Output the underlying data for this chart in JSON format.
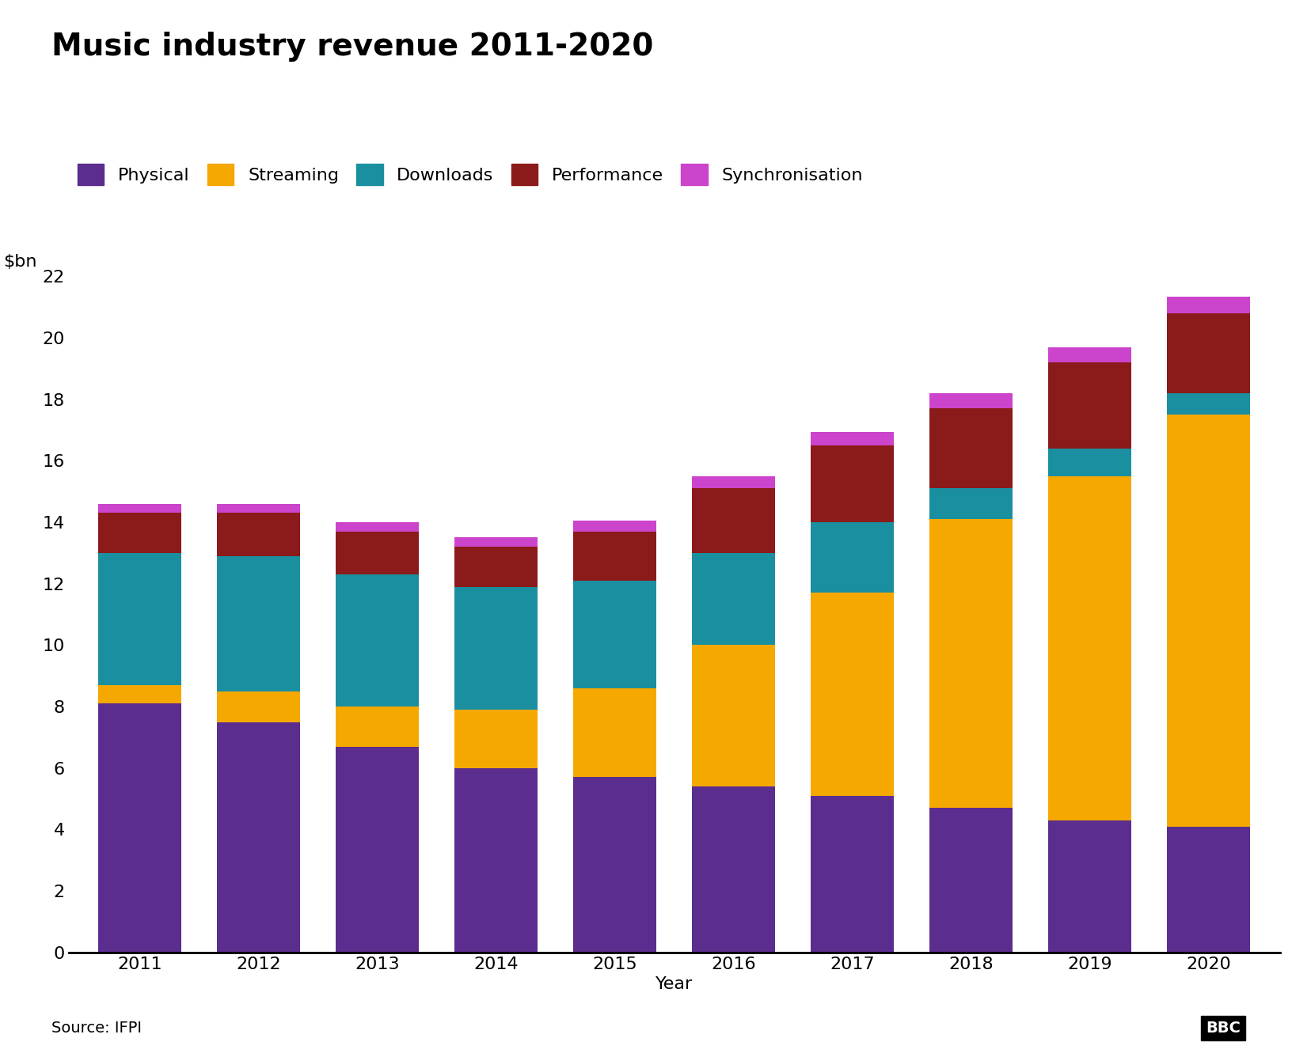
{
  "title": "Music industry revenue 2011-2020",
  "ylabel": "$bn",
  "xlabel": "Year",
  "years": [
    2011,
    2012,
    2013,
    2014,
    2015,
    2016,
    2017,
    2018,
    2019,
    2020
  ],
  "categories": [
    "Physical",
    "Streaming",
    "Downloads",
    "Performance",
    "Synchronisation"
  ],
  "colors": [
    "#5b2d8e",
    "#f5a800",
    "#1a8fa0",
    "#8b1a1a",
    "#cc44cc"
  ],
  "values": {
    "Physical": [
      8.1,
      7.5,
      6.7,
      6.0,
      5.7,
      5.4,
      5.1,
      4.7,
      4.3,
      4.1
    ],
    "Streaming": [
      0.6,
      1.0,
      1.3,
      1.9,
      2.9,
      4.6,
      6.6,
      9.4,
      11.2,
      13.4
    ],
    "Downloads": [
      4.3,
      4.4,
      4.3,
      4.0,
      3.5,
      3.0,
      2.3,
      1.0,
      0.9,
      0.7
    ],
    "Performance": [
      1.3,
      1.4,
      1.4,
      1.3,
      1.6,
      2.1,
      2.5,
      2.6,
      2.8,
      2.6
    ],
    "Synchronisation": [
      0.3,
      0.3,
      0.3,
      0.3,
      0.35,
      0.4,
      0.45,
      0.5,
      0.5,
      0.55
    ]
  },
  "ylim": [
    0,
    22
  ],
  "yticks": [
    0,
    2,
    4,
    6,
    8,
    10,
    12,
    14,
    16,
    18,
    20,
    22
  ],
  "background_color": "#ffffff",
  "source_text": "Source: IFPI",
  "bbc_text": "BBC",
  "title_fontsize": 28,
  "legend_fontsize": 16,
  "tick_fontsize": 16,
  "label_fontsize": 16,
  "bar_width": 0.7
}
